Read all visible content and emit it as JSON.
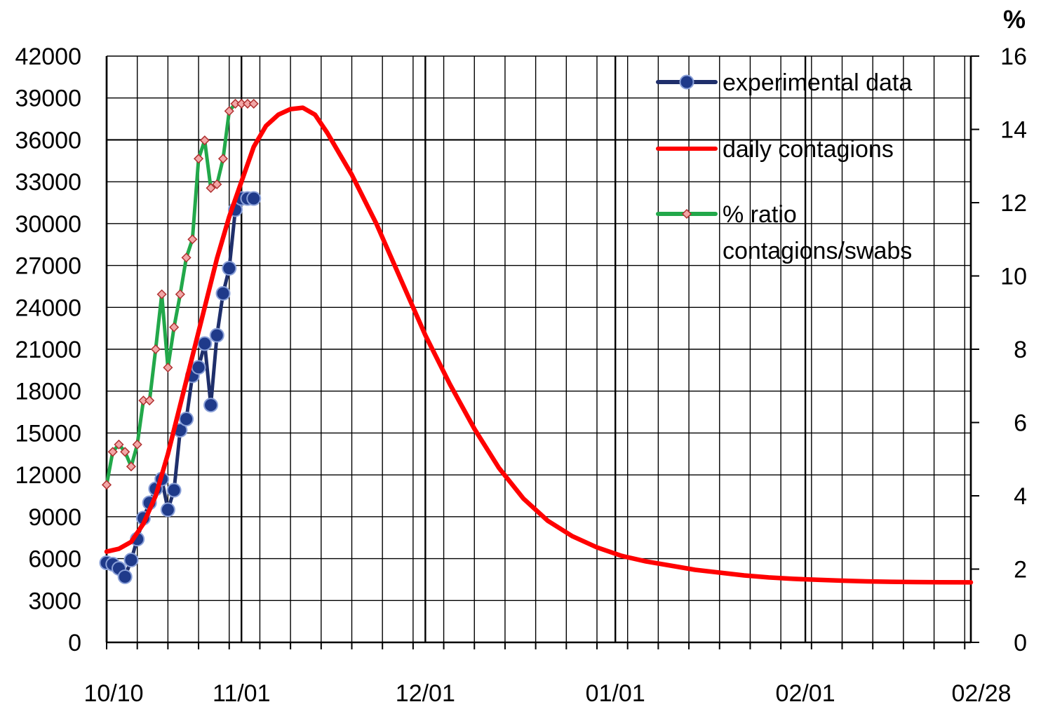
{
  "chart_data": {
    "type": "line",
    "title": "",
    "xlabel": "",
    "ylabel": "",
    "y2label": "%",
    "x_tick_labels": [
      "10/10",
      "11/01",
      "12/01",
      "01/01",
      "02/01",
      "02/28"
    ],
    "x_tick_days": [
      0,
      22,
      52,
      83,
      114,
      141
    ],
    "ylim": [
      0,
      42000
    ],
    "yticks": [
      0,
      3000,
      6000,
      9000,
      12000,
      15000,
      18000,
      21000,
      24000,
      27000,
      30000,
      33000,
      36000,
      39000,
      42000
    ],
    "y2lim": [
      0,
      16
    ],
    "y2ticks": [
      0,
      2,
      4,
      6,
      8,
      10,
      12,
      14,
      16
    ],
    "grid": true,
    "legend_position": "top-right",
    "series": [
      {
        "name": "experimental data",
        "axis": "left",
        "color": "#1f2f6b",
        "marker": "circle",
        "x": [
          0,
          1,
          2,
          3,
          4,
          5,
          6,
          7,
          8,
          9,
          10,
          11,
          12,
          13,
          14,
          15,
          16,
          17,
          18,
          19,
          20,
          21,
          22,
          23,
          24
        ],
        "y": [
          5700,
          5600,
          5300,
          4700,
          5900,
          7400,
          8900,
          10000,
          11000,
          11700,
          9500,
          10900,
          15200,
          16000,
          19100,
          19700,
          21400,
          17000,
          22000,
          25000,
          26800,
          31000,
          31800,
          31800,
          31800
        ]
      },
      {
        "name": "daily contagions",
        "axis": "left",
        "color": "#ff0000",
        "x": [
          0,
          2,
          4,
          6,
          8,
          10,
          12,
          14,
          16,
          18,
          20,
          22,
          24,
          26,
          28,
          30,
          32,
          34,
          36,
          38,
          40,
          44,
          48,
          52,
          56,
          60,
          64,
          68,
          72,
          76,
          80,
          84,
          88,
          92,
          96,
          100,
          104,
          108,
          112,
          116,
          120,
          124,
          128,
          132,
          136,
          141
        ],
        "y": [
          6500,
          6700,
          7200,
          8500,
          10500,
          13500,
          17000,
          20500,
          24000,
          27500,
          30500,
          33000,
          35500,
          37000,
          37800,
          38200,
          38300,
          37800,
          36500,
          35000,
          33500,
          30000,
          26000,
          22000,
          18500,
          15300,
          12500,
          10300,
          8700,
          7600,
          6800,
          6200,
          5800,
          5500,
          5200,
          5000,
          4800,
          4650,
          4550,
          4480,
          4420,
          4370,
          4340,
          4320,
          4310,
          4300
        ]
      },
      {
        "name": "% ratio contagions/swabs",
        "axis": "right",
        "color": "#22a84a",
        "marker": "diamond",
        "x": [
          0,
          1,
          2,
          3,
          4,
          5,
          6,
          7,
          8,
          9,
          10,
          11,
          12,
          13,
          14,
          15,
          16,
          17,
          18,
          19,
          20,
          21,
          22,
          23,
          24
        ],
        "y": [
          4.3,
          5.2,
          5.4,
          5.2,
          4.8,
          5.4,
          6.6,
          6.6,
          8.0,
          9.5,
          7.5,
          8.6,
          9.5,
          10.5,
          11.0,
          13.2,
          13.7,
          12.4,
          12.5,
          13.2,
          14.5,
          14.7,
          14.7,
          14.7,
          14.7
        ]
      }
    ],
    "legend": [
      {
        "label_lines": [
          "experimental data"
        ]
      },
      {
        "label_lines": [
          "daily contagions"
        ]
      },
      {
        "label_lines": [
          "% ratio",
          "contagions/swabs"
        ]
      }
    ]
  }
}
